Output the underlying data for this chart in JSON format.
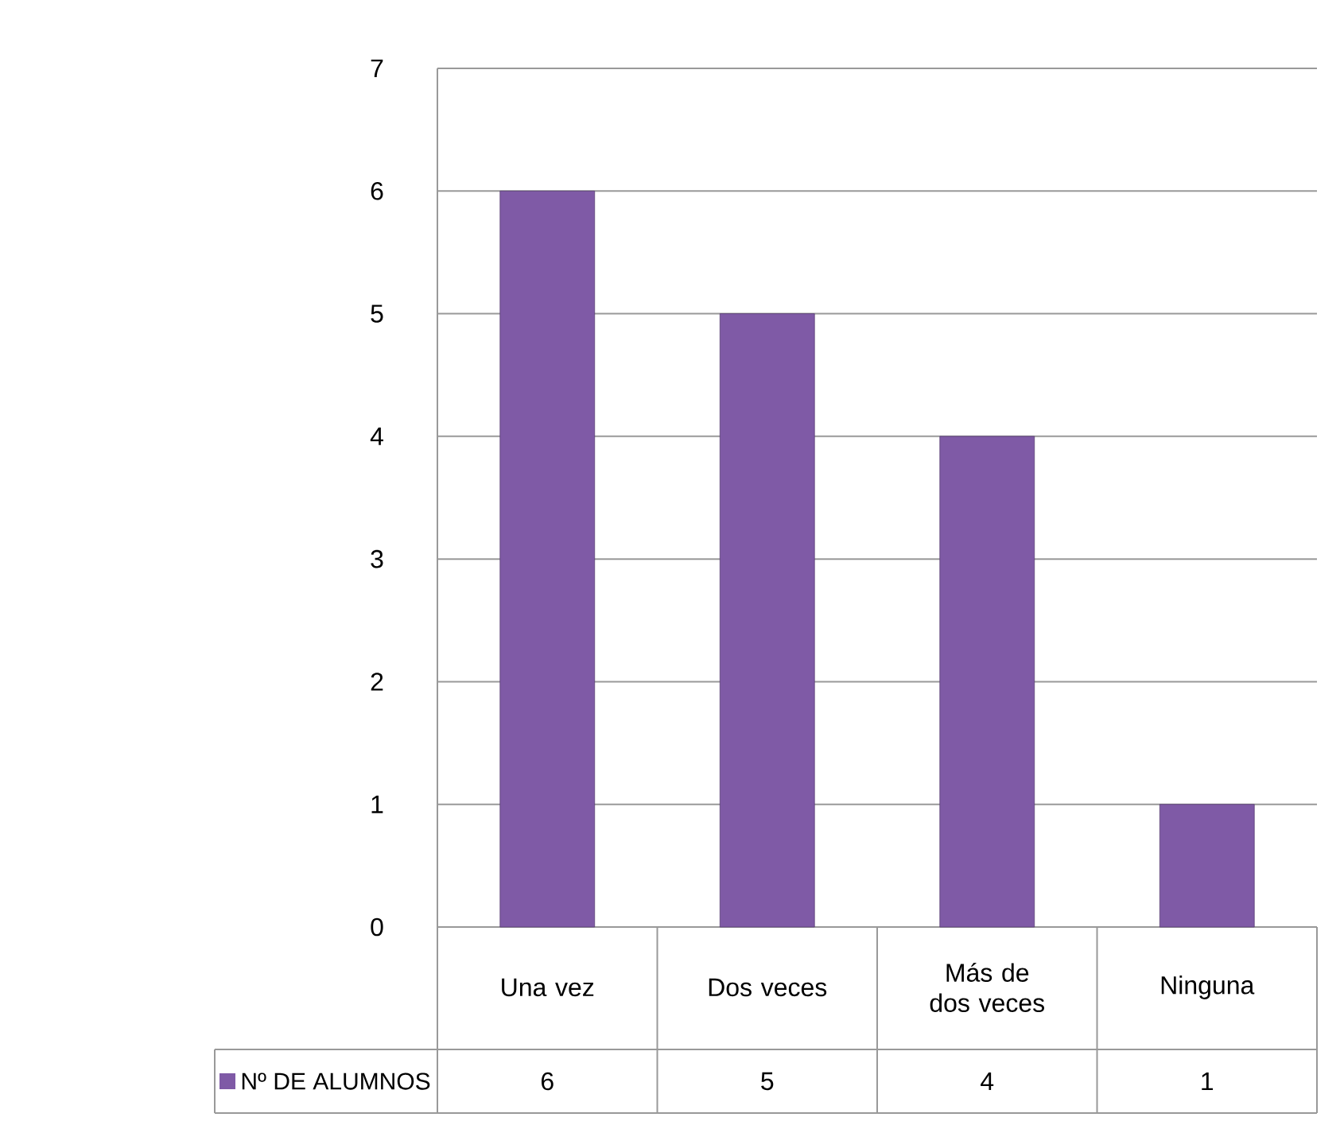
{
  "chart_data": {
    "type": "bar",
    "categories": [
      "Una vez",
      "Dos veces",
      "Más de dos veces",
      "Ninguna"
    ],
    "series": [
      {
        "name": "Nº DE ALUMNOS",
        "color": "#7f5aa6",
        "values": [
          6,
          5,
          4,
          1
        ]
      }
    ],
    "ylim": [
      0,
      7
    ],
    "yticks": [
      0,
      1,
      2,
      3,
      4,
      5,
      6,
      7
    ],
    "grid": "y",
    "data_labels": true,
    "legend": "bottom left"
  }
}
